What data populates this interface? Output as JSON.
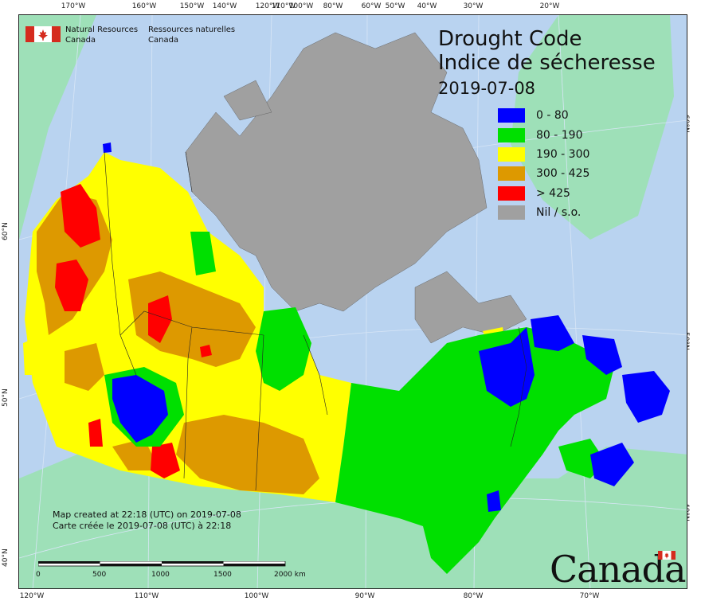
{
  "map_title": {
    "en": "Drought Code",
    "fr": "Indice de sécheresse",
    "date": "2019-07-08"
  },
  "legend": [
    {
      "label": "0 - 80",
      "color": "#0000ff"
    },
    {
      "label": "80 - 190",
      "color": "#00e000"
    },
    {
      "label": "190 - 300",
      "color": "#ffff00"
    },
    {
      "label": "300 - 425",
      "color": "#dd9900"
    },
    {
      "label": "> 425",
      "color": "#ff0000"
    },
    {
      "label": "Nil / s.o.",
      "color": "#a0a0a0"
    }
  ],
  "agency": {
    "en_line1": "Natural Resources",
    "en_line2": "Canada",
    "fr_line1": "Ressources naturelles",
    "fr_line2": "Canada"
  },
  "credit": {
    "line1": "Map created at 22:18 (UTC) on 2019-07-08",
    "line2": "Carte créée le 2019-07-08 (UTC) à 22:18"
  },
  "scale": {
    "labels": [
      "0",
      "500",
      "1000",
      "1500",
      "2000 km"
    ]
  },
  "wordmark": "Canada",
  "graticule": {
    "top": [
      "170°W",
      "160°W",
      "150°W",
      "140°W",
      "120°W",
      "100°W",
      "110°W",
      "80°W",
      "60°W",
      "50°W",
      "40°W",
      "30°W",
      "20°W"
    ],
    "bottom": [
      "120°W",
      "110°W",
      "100°W",
      "90°W",
      "80°W",
      "70°W"
    ],
    "left": [
      "60°N",
      "50°N",
      "40°N"
    ],
    "right": [
      "60°N",
      "50°N",
      "40°N"
    ]
  },
  "colors": {
    "ocean": "#b9d3f0",
    "land_outside": "#9ee0b8",
    "nodata": "#a0a0a0",
    "c0_80": "#0000ff",
    "c80_190": "#00e000",
    "c190_300": "#ffff00",
    "c300_425": "#dd9900",
    "c425": "#ff0000"
  }
}
